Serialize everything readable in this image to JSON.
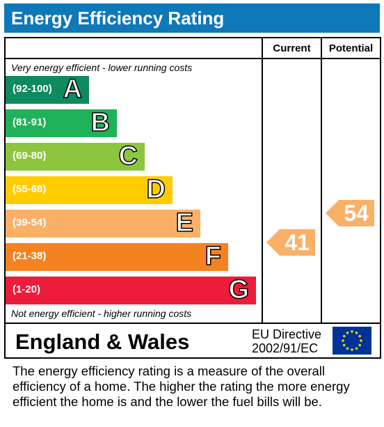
{
  "title": "Energy Efficiency Rating",
  "columns": {
    "current": "Current",
    "potential": "Potential"
  },
  "top_caption": "Very energy efficient - lower running costs",
  "bottom_caption": "Not energy efficient - higher running costs",
  "region": "England & Wales",
  "directive": {
    "line1": "EU Directive",
    "line2": "2002/91/EC"
  },
  "description": "The energy efficiency rating is a measure of the overall efficiency of a home.  The higher the rating the more energy efficient the home is and the lower the fuel bills will be.",
  "icons": {
    "eu_flag": "eu-flag-icon"
  },
  "chart_data": {
    "type": "bar",
    "title": "Energy Efficiency Rating",
    "bands": [
      {
        "letter": "A",
        "range": "(92-100)",
        "color": "#0f8a5f"
      },
      {
        "letter": "B",
        "range": "(81-91)",
        "color": "#1fb25a"
      },
      {
        "letter": "C",
        "range": "(69-80)",
        "color": "#8cc63f"
      },
      {
        "letter": "D",
        "range": "(55-68)",
        "color": "#ffcc00"
      },
      {
        "letter": "E",
        "range": "(39-54)",
        "color": "#fbb068"
      },
      {
        "letter": "F",
        "range": "(21-38)",
        "color": "#f58220"
      },
      {
        "letter": "G",
        "range": "(1-20)",
        "color": "#ed1c3a"
      }
    ],
    "current": {
      "value": 41,
      "band": "E",
      "color": "#fbb068"
    },
    "potential": {
      "value": 54,
      "band": "E",
      "color": "#fbb068"
    }
  }
}
